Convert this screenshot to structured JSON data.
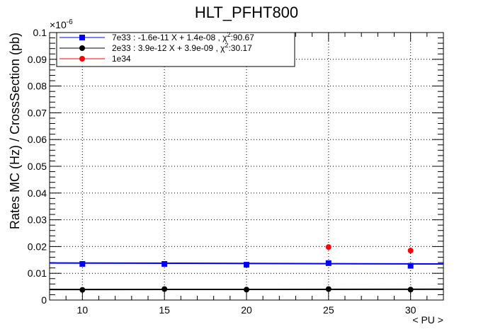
{
  "chart_data": {
    "type": "scatter",
    "title": "HLT_PFHT800",
    "xlabel": "< PU >",
    "ylabel": "Rates MC (Hz) / CrossSection (pb)",
    "y_exponent": "×10",
    "y_exponent_power": "-6",
    "xlim": [
      8,
      32
    ],
    "ylim": [
      0,
      0.1
    ],
    "x_ticks": [
      10,
      15,
      20,
      25,
      30
    ],
    "x_tick_labels": [
      "10",
      "15",
      "20",
      "25",
      "30"
    ],
    "y_ticks": [
      0,
      0.01,
      0.02,
      0.03,
      0.04,
      0.05,
      0.06,
      0.07,
      0.08,
      0.09,
      0.1
    ],
    "y_tick_labels": [
      "0",
      "0.01",
      "0.02",
      "0.03",
      "0.04",
      "0.05",
      "0.06",
      "0.07",
      "0.08",
      "0.09",
      "0.1"
    ],
    "grid": true,
    "legend_position": "top-left",
    "series": [
      {
        "name": "7e33 : -1.6e-11 X + 1.4e-08 , χ²:90.67",
        "name_parts": {
          "before": "7e33 : -1.6e-11 X + 1.4e-08 , χ",
          "sup": "2",
          "after": ":90.67"
        },
        "color": "#0000ff",
        "marker": "square",
        "x": [
          10,
          15,
          20,
          25,
          30
        ],
        "y": [
          0.0135,
          0.0135,
          0.0132,
          0.0138,
          0.0128
        ],
        "fit": {
          "slope": -1.6e-05,
          "intercept": 0.014,
          "x_range": [
            8,
            32
          ]
        }
      },
      {
        "name": "2e33 : 3.9e-12 X + 3.9e-09 , χ²:30.17",
        "name_parts": {
          "before": "2e33 : 3.9e-12 X + 3.9e-09 , χ",
          "sup": "2",
          "after": ":30.17"
        },
        "color": "#000000",
        "marker": "circle",
        "x": [
          10,
          15,
          20,
          25,
          30
        ],
        "y": [
          0.0038,
          0.0041,
          0.0039,
          0.0041,
          0.0039
        ],
        "fit": {
          "slope": 3.9e-06,
          "intercept": 0.0039,
          "x_range": [
            8,
            32
          ]
        }
      },
      {
        "name": "1e34",
        "name_parts": {
          "before": "1e34",
          "sup": "",
          "after": ""
        },
        "color": "#ff0000",
        "marker": "circle",
        "x": [
          25,
          30
        ],
        "y": [
          0.0198,
          0.0185
        ]
      }
    ]
  }
}
